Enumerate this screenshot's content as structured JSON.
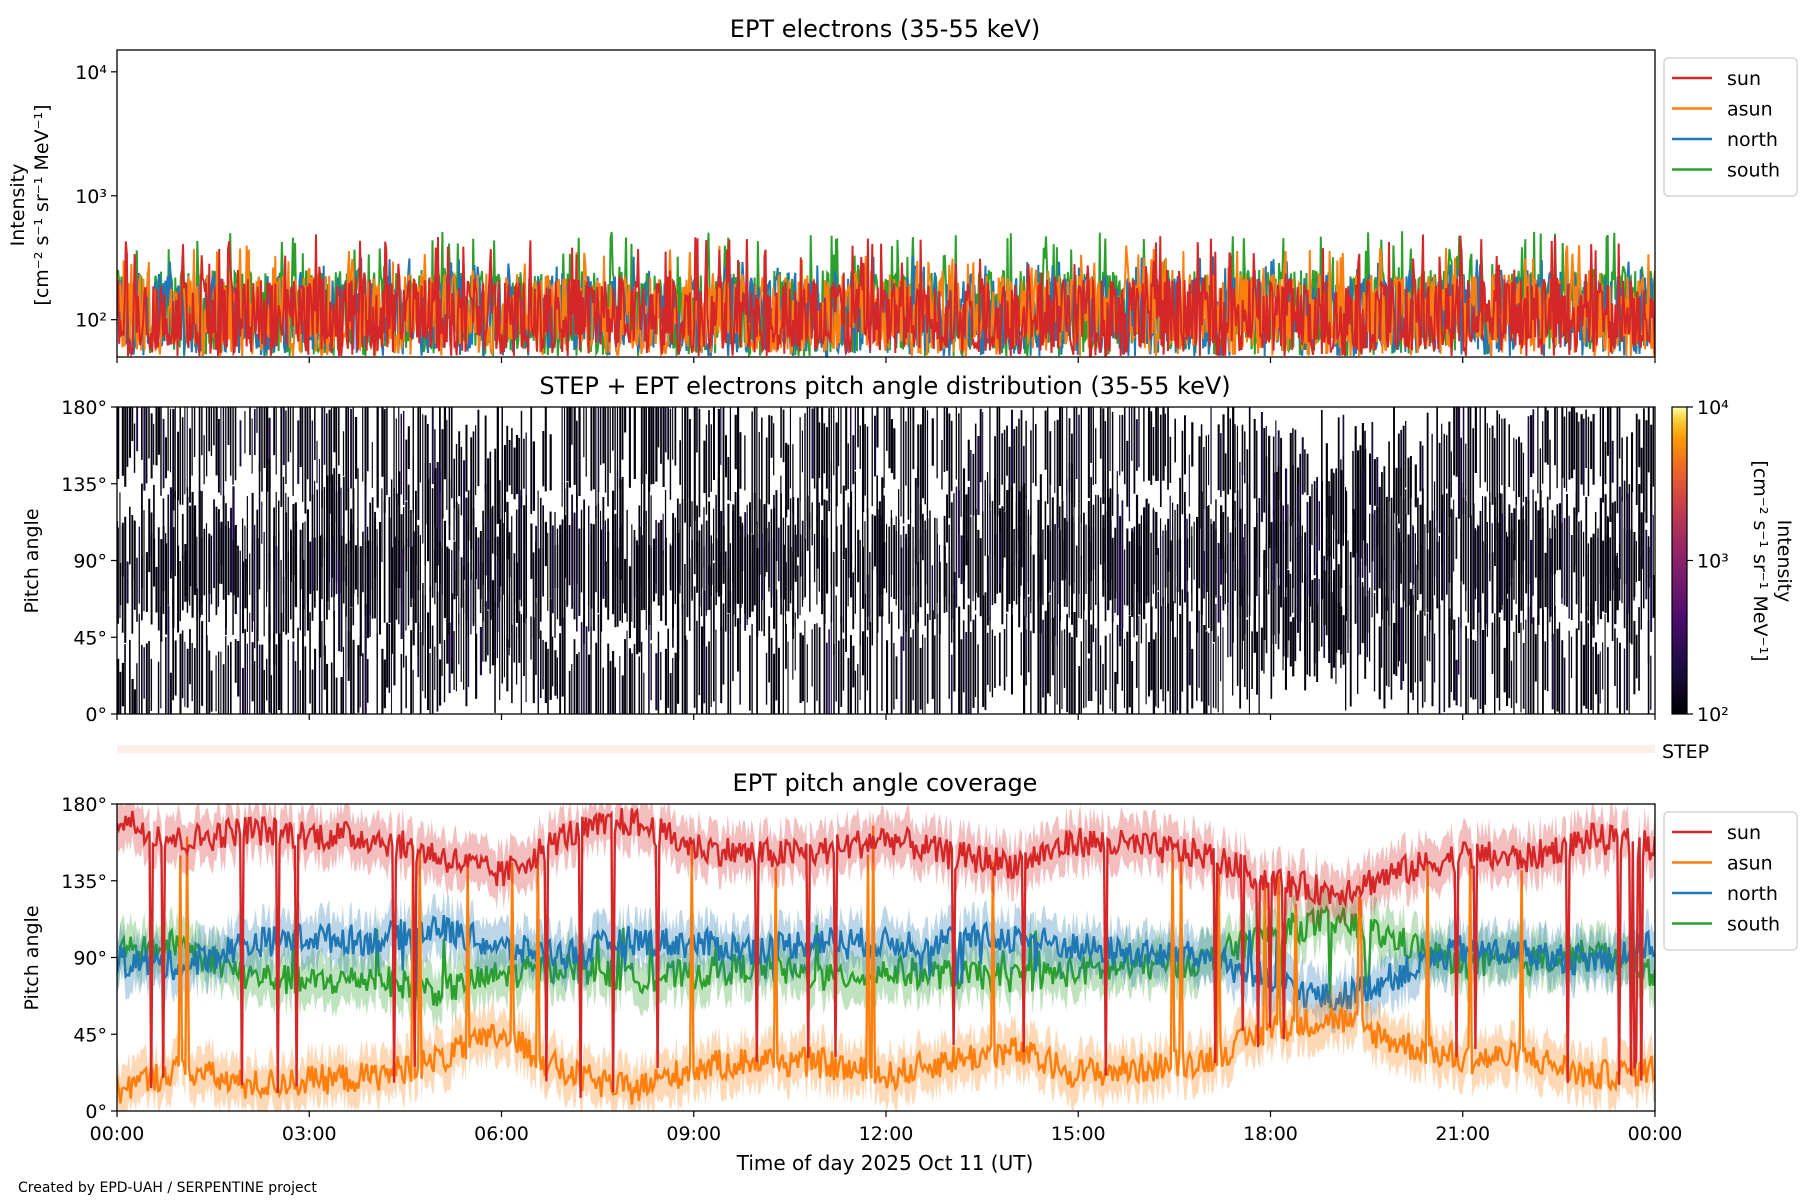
{
  "credit": "Created by EPD-UAH / SERPENTINE project",
  "chart_data": [
    {
      "type": "line",
      "title": "EPT electrons (35-55 keV)",
      "ylabel_line1": "Intensity",
      "ylabel_line2": "[cm⁻² s⁻¹ sr⁻¹ MeV⁻¹]",
      "y_scale": "log",
      "ylim": [
        50,
        15000
      ],
      "y_ticks": [
        {
          "value": 100,
          "label": "10²"
        },
        {
          "value": 1000,
          "label": "10³"
        },
        {
          "value": 10000,
          "label": "10⁴"
        }
      ],
      "xlim_hours": [
        0,
        24
      ],
      "legend_position": "outside-right",
      "series": [
        {
          "name": "south",
          "color": "#2ca02c",
          "typical": 140,
          "max": 520
        },
        {
          "name": "north",
          "color": "#1f77b4",
          "typical": 125,
          "max": 330
        },
        {
          "name": "asun",
          "color": "#ff7f0e",
          "typical": 130,
          "max": 400
        },
        {
          "name": "sun",
          "color": "#d62728",
          "typical": 120,
          "max": 490
        }
      ],
      "note": "noisy count-rate traces between ~50 and ~500; red (sun) drawn on top"
    },
    {
      "type": "heatmap",
      "title": "STEP + EPT electrons pitch angle distribution (35-55 keV)",
      "ylabel": "Pitch angle",
      "y_ticks": [
        "0°",
        "45°",
        "90°",
        "135°",
        "180°"
      ],
      "y_tick_values": [
        0,
        45,
        90,
        135,
        180
      ],
      "ylim": [
        0,
        180
      ],
      "xlim_hours": [
        0,
        24
      ],
      "colorbar": {
        "colormap": "inferno",
        "scale": "log",
        "range": [
          100,
          10000
        ],
        "ticks": [
          {
            "value": 100,
            "label": "10²"
          },
          {
            "value": 1000,
            "label": "10³"
          },
          {
            "value": 10000,
            "label": "10⁴"
          }
        ],
        "label_line1": "Intensity",
        "label_line2": "[cm⁻² s⁻¹ sr⁻¹ MeV⁻¹]"
      },
      "note": "intensities near 10² (black) where sampled, white gaps elsewhere"
    },
    {
      "type": "bar",
      "label": "STEP",
      "color": "#fdeee8",
      "xlim_hours": [
        0,
        24
      ]
    },
    {
      "type": "line",
      "title": "EPT pitch angle coverage",
      "ylabel": "Pitch angle",
      "y_ticks": [
        "0°",
        "45°",
        "90°",
        "135°",
        "180°"
      ],
      "y_tick_values": [
        0,
        45,
        90,
        135,
        180
      ],
      "ylim": [
        0,
        180
      ],
      "xlabel": "Time of day 2025 Oct 11 (UT)",
      "x_ticks": [
        "00:00",
        "03:00",
        "06:00",
        "09:00",
        "12:00",
        "15:00",
        "18:00",
        "21:00",
        "00:00"
      ],
      "x_tick_hours": [
        0,
        3,
        6,
        9,
        12,
        15,
        18,
        21,
        24
      ],
      "xlim_hours": [
        0,
        24
      ],
      "legend_position": "outside-right",
      "series": [
        {
          "name": "sun",
          "color": "#d62728",
          "time_hours": [
            0,
            1,
            2,
            3,
            4,
            5,
            6,
            7,
            8,
            9,
            10,
            11,
            12,
            13,
            14,
            15,
            16,
            17,
            18,
            19,
            20,
            21,
            22,
            23,
            24
          ],
          "pitch_deg": [
            172,
            158,
            165,
            162,
            160,
            150,
            138,
            162,
            170,
            155,
            150,
            152,
            160,
            150,
            145,
            158,
            155,
            150,
            135,
            128,
            140,
            150,
            148,
            160,
            155
          ]
        },
        {
          "name": "asun",
          "color": "#ff7f0e",
          "time_hours": [
            0,
            1,
            2,
            3,
            4,
            5,
            6,
            7,
            8,
            9,
            10,
            11,
            12,
            13,
            14,
            15,
            16,
            17,
            18,
            19,
            20,
            21,
            22,
            23,
            24
          ],
          "pitch_deg": [
            12,
            25,
            15,
            18,
            20,
            30,
            45,
            22,
            12,
            25,
            30,
            28,
            20,
            30,
            35,
            22,
            25,
            30,
            48,
            55,
            40,
            30,
            32,
            20,
            25
          ]
        },
        {
          "name": "north",
          "color": "#1f77b4",
          "time_hours": [
            0,
            1,
            2,
            3,
            4,
            5,
            6,
            7,
            8,
            9,
            10,
            11,
            12,
            13,
            14,
            15,
            16,
            17,
            18,
            19,
            20,
            21,
            22,
            23,
            24
          ],
          "pitch_deg": [
            88,
            85,
            98,
            102,
            100,
            108,
            95,
            92,
            100,
            98,
            95,
            100,
            98,
            100,
            102,
            96,
            92,
            90,
            75,
            65,
            80,
            95,
            92,
            88,
            98
          ]
        },
        {
          "name": "south",
          "color": "#2ca02c",
          "time_hours": [
            0,
            1,
            2,
            3,
            4,
            5,
            6,
            7,
            8,
            9,
            10,
            11,
            12,
            13,
            14,
            15,
            16,
            17,
            18,
            19,
            20,
            21,
            22,
            23,
            24
          ],
          "pitch_deg": [
            92,
            98,
            80,
            75,
            78,
            70,
            80,
            85,
            78,
            80,
            85,
            78,
            82,
            80,
            78,
            82,
            85,
            88,
            105,
            112,
            100,
            85,
            88,
            92,
            80
          ]
        }
      ]
    }
  ]
}
